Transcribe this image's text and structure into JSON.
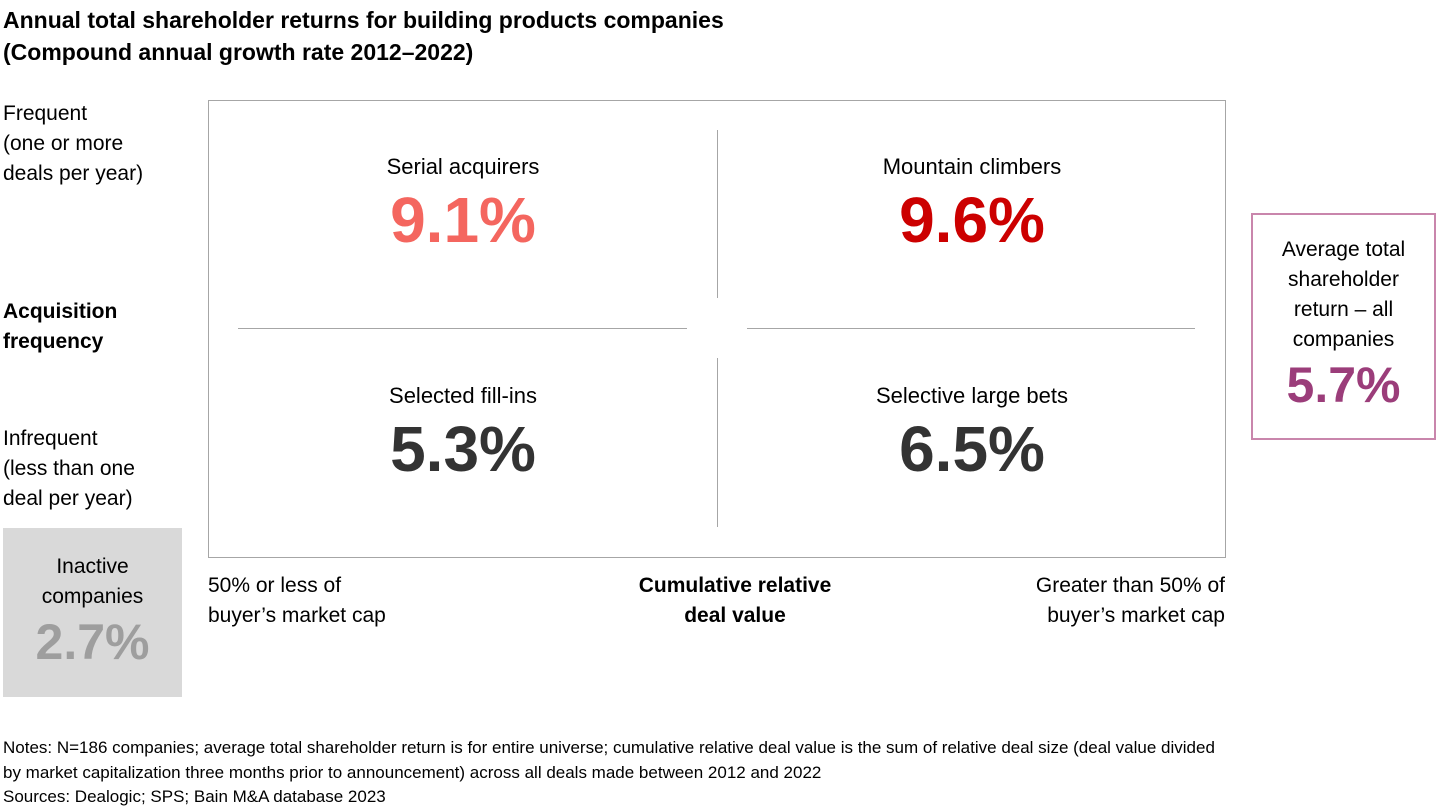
{
  "title": [
    "Annual total shareholder returns for building products companies",
    "(Compound annual growth rate 2012–2022)"
  ],
  "y_axis": {
    "top": [
      "Frequent",
      "(one or more",
      "deals per year)"
    ],
    "label": [
      "Acquisition",
      "frequency"
    ],
    "bottom": [
      "Infrequent",
      "(less than one",
      "deal per year)"
    ]
  },
  "quadrants": [
    {
      "label": "Serial acquirers",
      "value": "9.1%"
    },
    {
      "label": "Mountain climbers",
      "value": "9.6%"
    },
    {
      "label": "Selected fill-ins",
      "value": "5.3%"
    },
    {
      "label": "Selective large bets",
      "value": "6.5%"
    }
  ],
  "x_axis": {
    "left": [
      "50% or less of",
      "buyer’s market cap"
    ],
    "label": [
      "Cumulative relative",
      "deal value"
    ],
    "right": [
      "Greater than 50% of",
      "buyer’s market cap"
    ]
  },
  "average": {
    "label": [
      "Average total",
      "shareholder",
      "return – all",
      "companies"
    ],
    "value": "5.7%"
  },
  "inactive": {
    "label": [
      "Inactive",
      "companies"
    ],
    "value": "2.7%"
  },
  "notes": [
    "Notes: N=186 companies; average total shareholder return is for entire universe; cumulative relative deal value is the sum of relative deal size (deal value divided",
    "by market capitalization three months prior to announcement) across all deals made between 2012 and 2022",
    "Sources: Dealogic; SPS; Bain M&A database 2023"
  ]
}
